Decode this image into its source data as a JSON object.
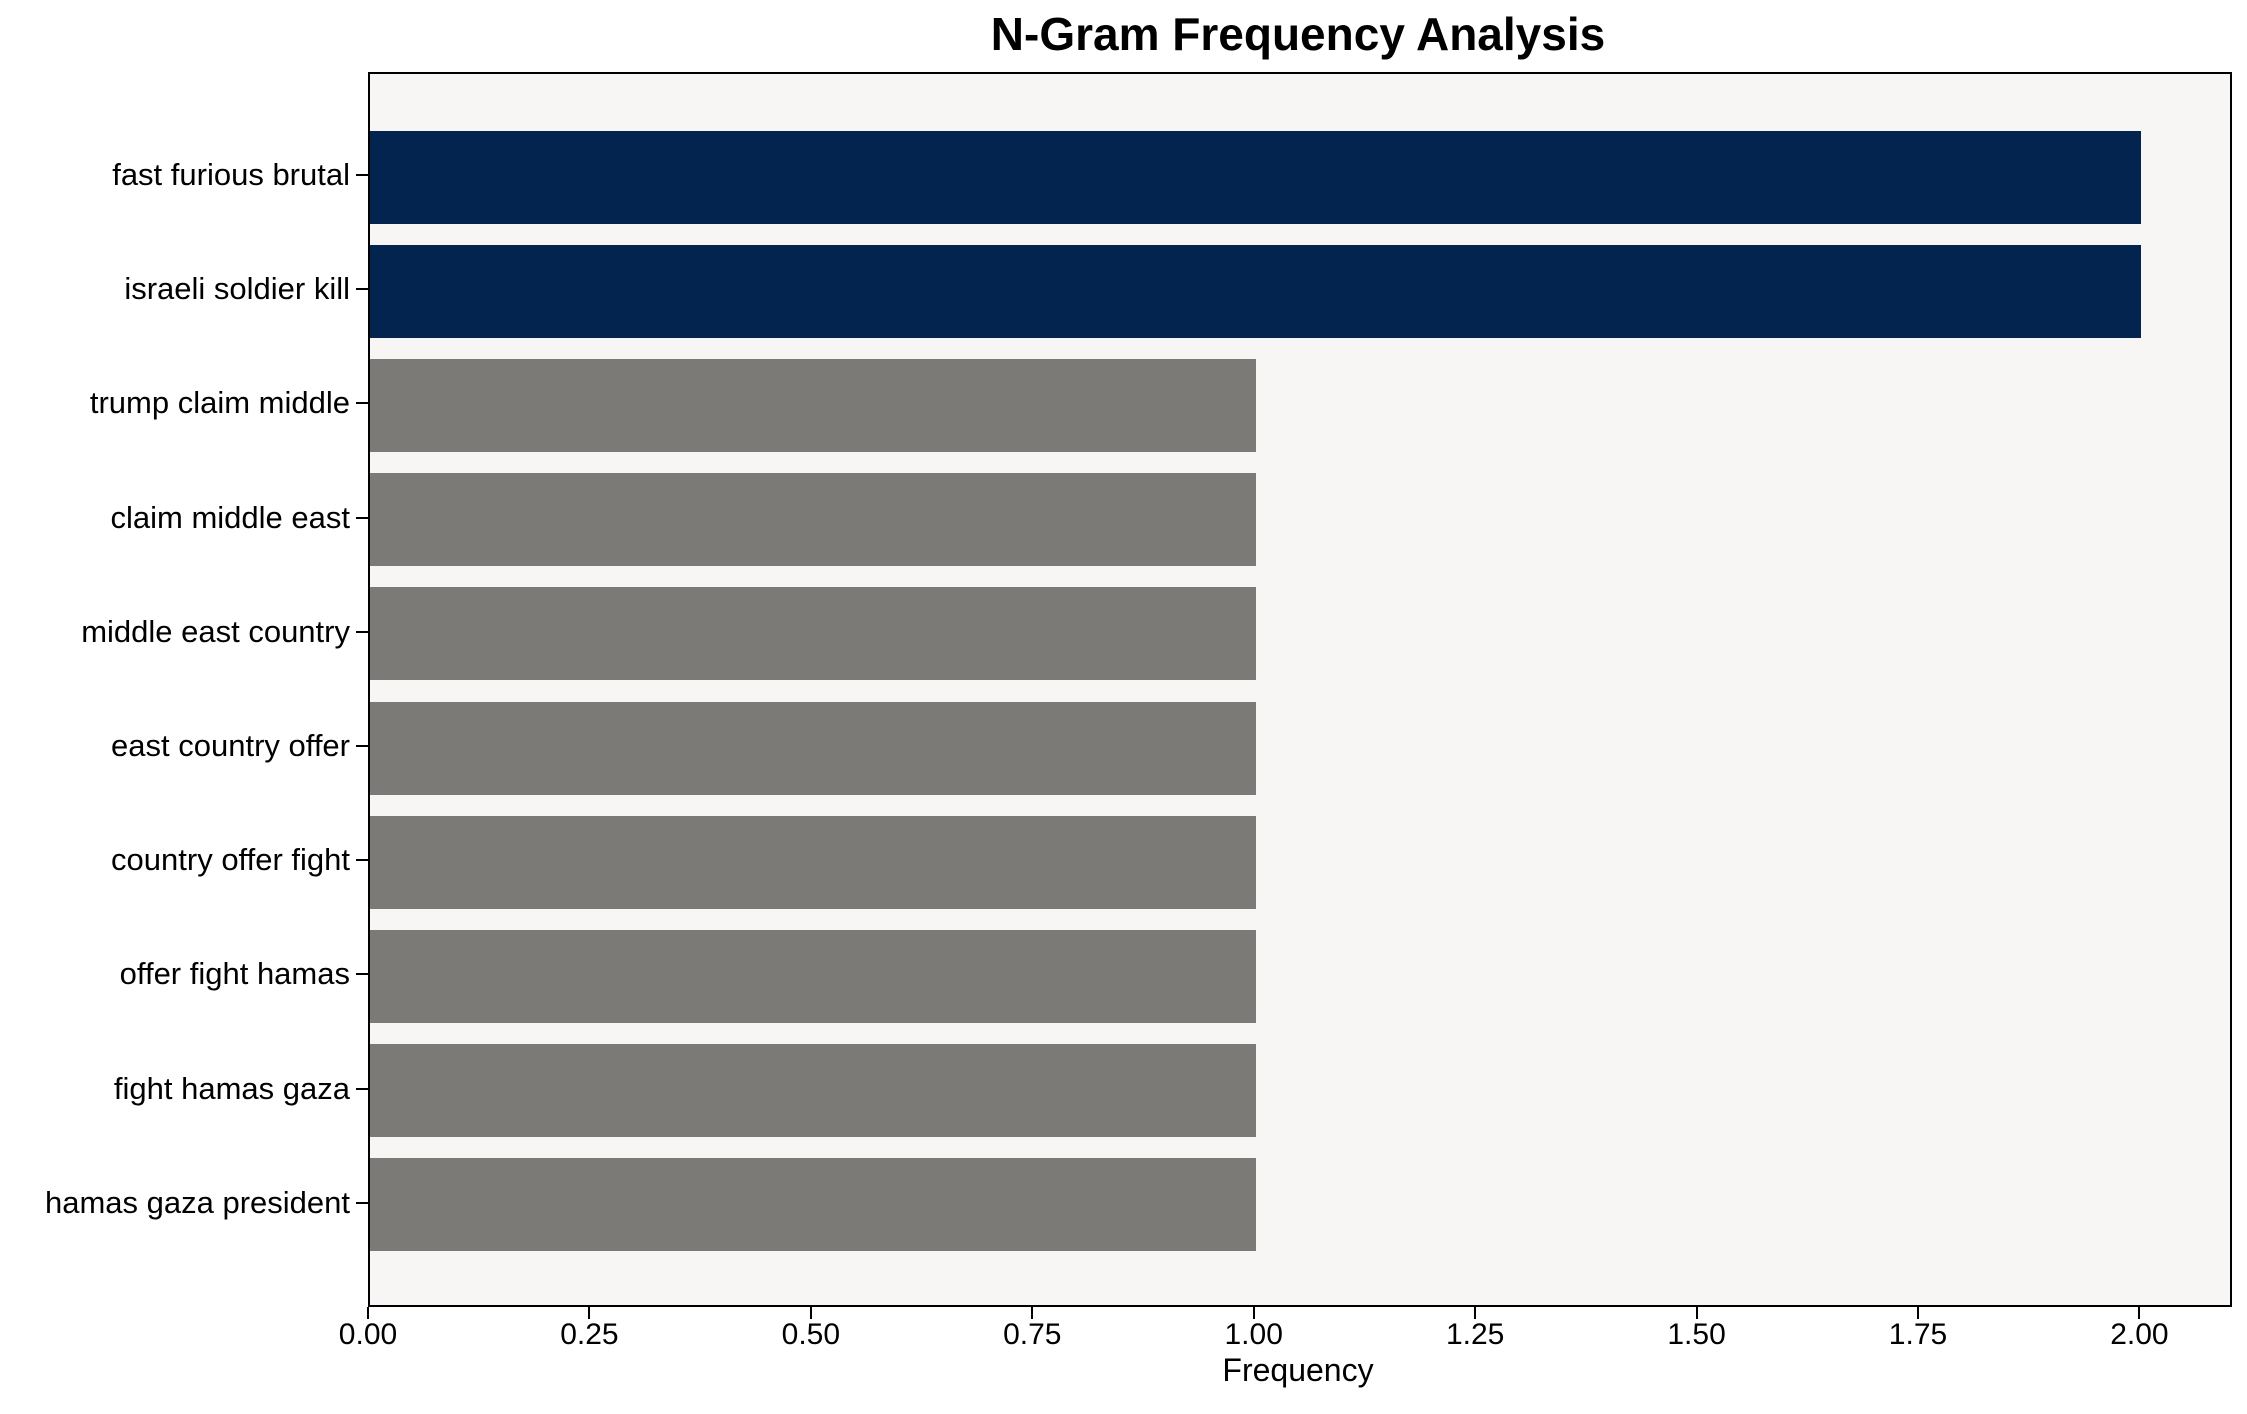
{
  "chart_data": {
    "type": "bar",
    "orientation": "horizontal",
    "title": "N-Gram Frequency Analysis",
    "xlabel": "Frequency",
    "ylabel": "",
    "categories": [
      "fast furious brutal",
      "israeli soldier kill",
      "trump claim middle",
      "claim middle east",
      "middle east country",
      "east country offer",
      "country offer fight",
      "offer fight hamas",
      "fight hamas gaza",
      "hamas gaza president"
    ],
    "values": [
      2,
      2,
      1,
      1,
      1,
      1,
      1,
      1,
      1,
      1
    ],
    "bar_colors": [
      "#03244e",
      "#03244e",
      "#7b7a76",
      "#7b7a76",
      "#7b7a76",
      "#7b7a76",
      "#7b7a76",
      "#7b7a76",
      "#7b7a76",
      "#7b7a76"
    ],
    "xlim": [
      0,
      2.1
    ],
    "x_tick_values": [
      0,
      0.25,
      0.5,
      0.75,
      1.0,
      1.25,
      1.5,
      1.75,
      2.0
    ],
    "x_tick_labels": [
      "0.00",
      "0.25",
      "0.50",
      "0.75",
      "1.00",
      "1.25",
      "1.50",
      "1.75",
      "2.00"
    ],
    "grid": false,
    "legend": null,
    "colors": {
      "highlight_bar": "#03244e",
      "default_bar": "#7b7a76",
      "plot_background": "#f7f6f5",
      "figure_background": "#ffffff",
      "spine": "#000000",
      "text": "#000000"
    }
  }
}
